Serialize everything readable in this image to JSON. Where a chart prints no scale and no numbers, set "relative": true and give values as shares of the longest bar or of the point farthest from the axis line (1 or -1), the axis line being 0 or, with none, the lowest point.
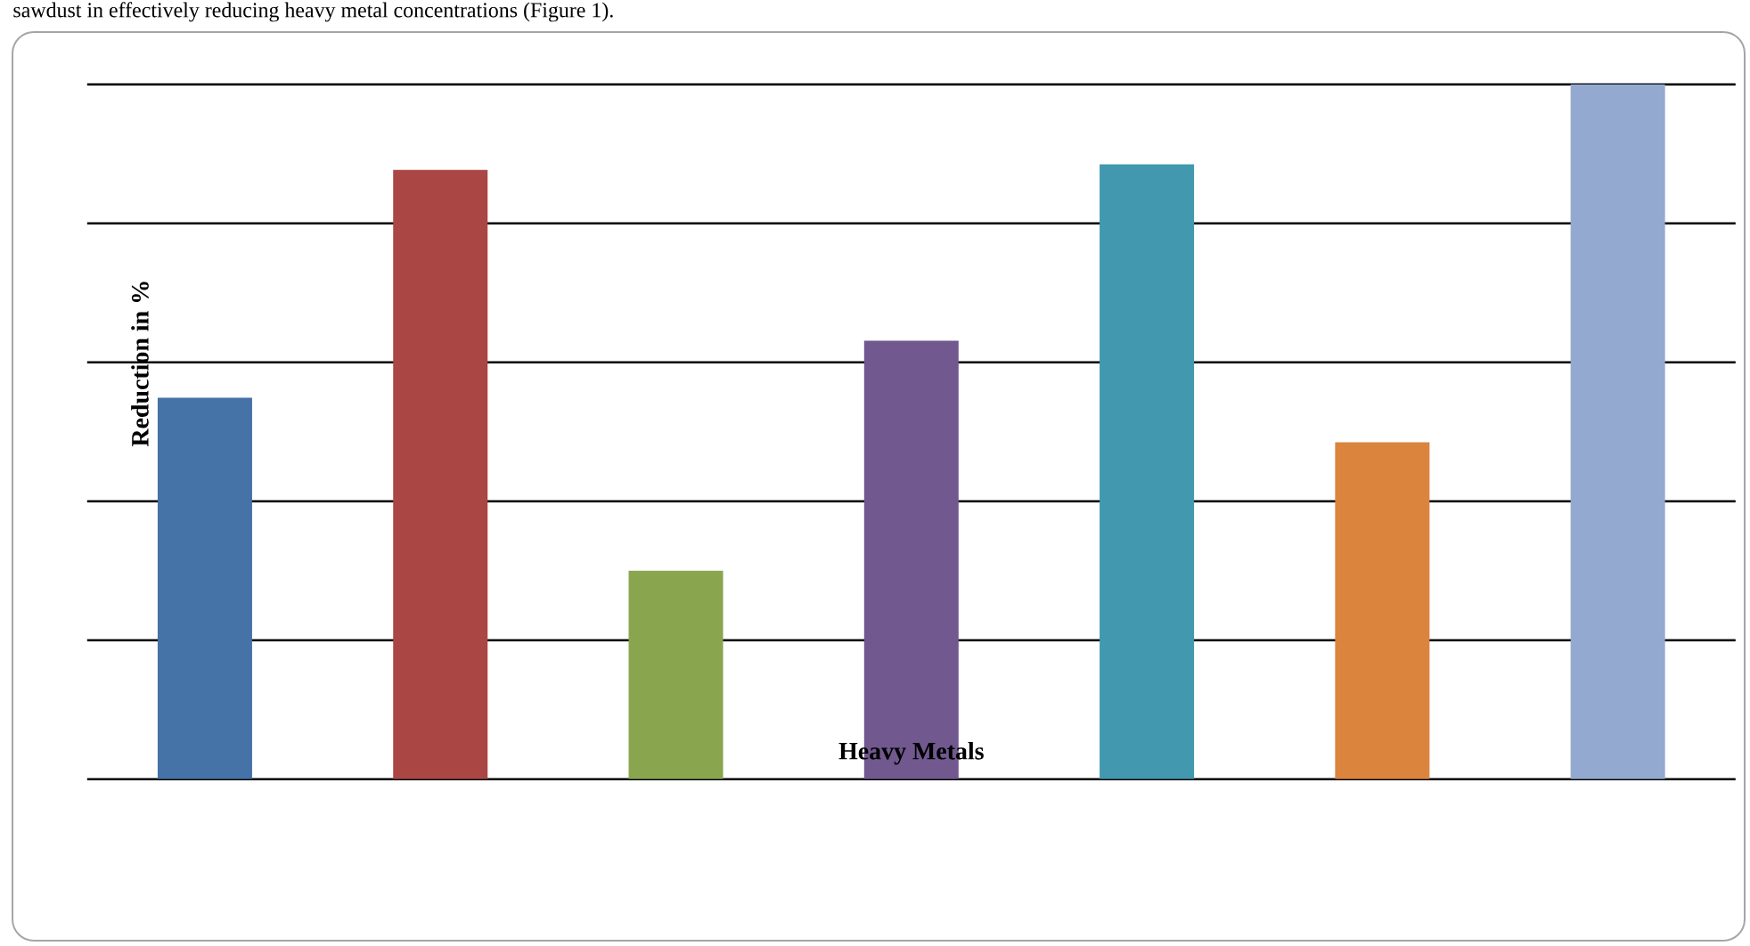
{
  "chart_data": {
    "type": "bar",
    "relative": true,
    "xlabel": "Heavy Metals",
    "ylabel": "Reduction in %",
    "categories": [
      null,
      null,
      null,
      null,
      null,
      null,
      null
    ],
    "values": [
      0.549,
      0.877,
      0.3,
      0.631,
      0.885,
      0.485,
      1
    ],
    "colors": [
      "#4572a7",
      "#aa4643",
      "#89a54e",
      "#71588f",
      "#4198af",
      "#db843d",
      "#93a9cf"
    ],
    "grid": "y",
    "annotations": [
      "sawdust in effectively reducing heavy metal concentrations (Figure 1)."
    ]
  }
}
